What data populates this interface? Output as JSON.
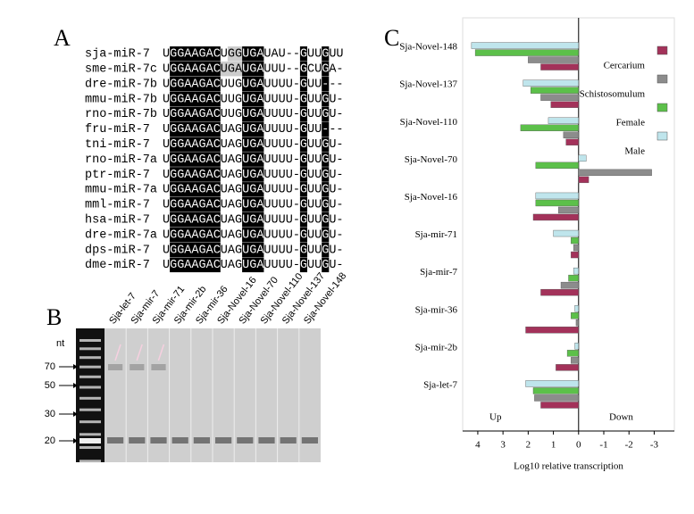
{
  "panel_labels": {
    "a": "A",
    "b": "B",
    "c": "C"
  },
  "alignment": {
    "rows": [
      {
        "name": "sja-miR-7",
        "sequence": "UGGAAGACUGGUGAUAU--GUUGUU"
      },
      {
        "name": "sme-miR-7c",
        "sequence": "UGGAAGACUGAUGAUUU--GCUGA-"
      },
      {
        "name": "dre-miR-7b",
        "sequence": "UGGAAGACUUGUGAUUUU-GUU---"
      },
      {
        "name": "mmu-miR-7b",
        "sequence": "UGGAAGACUUGUGAUUUU-GUUGU-"
      },
      {
        "name": "rno-miR-7b",
        "sequence": "UGGAAGACUUGUGAUUUU-GUUGU-"
      },
      {
        "name": "fru-miR-7",
        "sequence": "UGGAAGACUAGUGAUUUU-GUU---"
      },
      {
        "name": "tni-miR-7",
        "sequence": "UGGAAGACUAGUGAUUUU-GUUGU-"
      },
      {
        "name": "rno-miR-7a",
        "sequence": "UGGAAGACUAGUGAUUUU-GUUGU-"
      },
      {
        "name": "ptr-miR-7",
        "sequence": "UGGAAGACUAGUGAUUUU-GUUGU-"
      },
      {
        "name": "mmu-miR-7a",
        "sequence": "UGGAAGACUAGUGAUUUU-GUUGU-"
      },
      {
        "name": "mml-miR-7",
        "sequence": "UGGAAGACUAGUGAUUUU-GUUGU-"
      },
      {
        "name": "hsa-miR-7",
        "sequence": "UGGAAGACUAGUGAUUUU-GUUGU-"
      },
      {
        "name": "dre-miR-7a",
        "sequence": "UGGAAGACUAGUGAUUUU-GUUGU-"
      },
      {
        "name": "dps-miR-7",
        "sequence": "UGGAAGACUAGUGAUUUU-GUUGU-"
      },
      {
        "name": "dme-miR-7",
        "sequence": "UGGAAGACUAGUGAUUUU-GUUGU-"
      }
    ]
  },
  "gel": {
    "unit": "nt",
    "markers": [
      "70",
      "50",
      "30",
      "20"
    ],
    "lanes": [
      "Sja-let-7",
      "Sja-mir-7",
      "Sja-mir-71",
      "Sja-mir-2b",
      "Sja-mir-36",
      "Sja-Novel-16",
      "Sja-Novel-70",
      "Sja-Novel-110",
      "Sja-Novel-137",
      "Sja-Novel-148"
    ]
  },
  "chart_data": {
    "type": "hbar",
    "categories": [
      "Sja-Novel-148",
      "Sja-Novel-137",
      "Sja-Novel-110",
      "Sja-Novel-70",
      "Sja-Novel-16",
      "Sja-mir-71",
      "Sja-mir-7",
      "Sja-mir-36",
      "Sja-mir-2b",
      "Sja-let-7"
    ],
    "series": [
      {
        "name": "Cercarium",
        "color": "#a3325a",
        "values": [
          1.5,
          1.1,
          0.5,
          -0.4,
          1.8,
          0.3,
          1.5,
          2.1,
          0.9,
          1.5
        ]
      },
      {
        "name": "Schistosomulum",
        "color": "#8c8c8c",
        "values": [
          2.0,
          1.5,
          0.6,
          -2.9,
          0.8,
          0.2,
          0.7,
          0.1,
          0.3,
          1.75
        ]
      },
      {
        "name": "Female",
        "color": "#5cc04a",
        "values": [
          4.1,
          1.9,
          2.3,
          1.7,
          1.7,
          0.3,
          0.4,
          0.3,
          0.45,
          1.8
        ]
      },
      {
        "name": "Male",
        "color": "#bfe5ec",
        "values": [
          4.25,
          2.2,
          1.2,
          -0.3,
          1.7,
          1.0,
          0.2,
          0.15,
          0.15,
          2.1
        ]
      }
    ],
    "xlim": [
      4.6,
      -3.8
    ],
    "xticks": [
      4,
      3,
      2,
      1,
      0,
      -1,
      -2,
      -3
    ],
    "xlabel": "Log10 relative transcription",
    "annotations": [
      "Up",
      "Down"
    ],
    "legend": "top-right"
  }
}
